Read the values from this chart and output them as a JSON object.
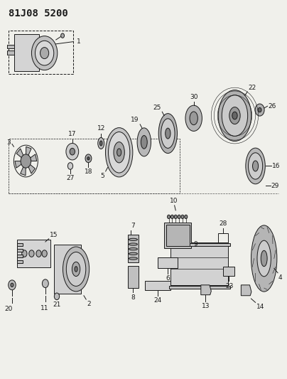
{
  "title": "81J08 5200",
  "bg_color": "#f0f0eb",
  "line_color": "#1a1a1a",
  "font_size_title": 10,
  "font_size_labels": 6.5
}
